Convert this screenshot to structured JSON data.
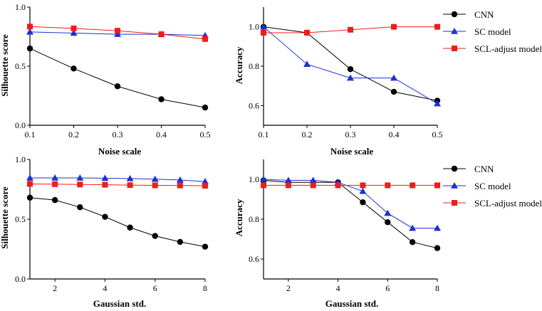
{
  "colors": {
    "CNN": "#000000",
    "SC model": "#1f2fd1",
    "SCL-adjust model": "#ee1c1c"
  },
  "legend": {
    "entries": [
      {
        "name": "CNN",
        "marker": "circle"
      },
      {
        "name": "SC model",
        "marker": "triangle"
      },
      {
        "name": "SCL-adjust model",
        "marker": "square"
      }
    ]
  },
  "chart_data": [
    {
      "type": "line",
      "id": "panel-a",
      "title": "",
      "xlabel": "Noise scale",
      "ylabel": "Silhouette score",
      "xlim": [
        0.1,
        0.5
      ],
      "ylim": [
        0.0,
        1.0
      ],
      "xticks": [
        0.1,
        0.2,
        0.3,
        0.4,
        0.5
      ],
      "xtick_labels": [
        "0.1",
        "0.2",
        "0.3",
        "0.4",
        "0.5"
      ],
      "yticks": [
        0.0,
        0.5,
        1.0
      ],
      "ytick_labels": [
        "0.0",
        "0.5",
        "1.0"
      ],
      "x": [
        0.1,
        0.2,
        0.3,
        0.4,
        0.5
      ],
      "series": [
        {
          "name": "CNN",
          "marker": "circle",
          "values": [
            0.65,
            0.48,
            0.33,
            0.22,
            0.15
          ]
        },
        {
          "name": "SC model",
          "marker": "triangle",
          "values": [
            0.79,
            0.78,
            0.77,
            0.77,
            0.76
          ]
        },
        {
          "name": "SCL-adjust model",
          "marker": "square",
          "values": [
            0.835,
            0.82,
            0.8,
            0.77,
            0.73
          ]
        }
      ]
    },
    {
      "type": "line",
      "id": "panel-b",
      "title": "",
      "xlabel": "Noise scale",
      "ylabel": "Accuracy",
      "xlim": [
        0.1,
        0.5
      ],
      "ylim": [
        0.5,
        1.1
      ],
      "xticks": [
        0.1,
        0.2,
        0.3,
        0.4,
        0.5
      ],
      "xtick_labels": [
        "0.1",
        "0.2",
        "0.3",
        "0.4",
        "0.5"
      ],
      "yticks": [
        0.6,
        0.8,
        1.0
      ],
      "ytick_labels": [
        "0.6",
        "0.8",
        "1.0"
      ],
      "x": [
        0.1,
        0.2,
        0.3,
        0.4,
        0.5
      ],
      "series": [
        {
          "name": "CNN",
          "marker": "circle",
          "values": [
            1.0,
            0.97,
            0.785,
            0.67,
            0.625
          ]
        },
        {
          "name": "SC model",
          "marker": "triangle",
          "values": [
            1.0,
            0.81,
            0.74,
            0.74,
            0.61
          ]
        },
        {
          "name": "SCL-adjust model",
          "marker": "square",
          "values": [
            0.97,
            0.97,
            0.985,
            1.0,
            1.0
          ]
        }
      ]
    },
    {
      "type": "line",
      "id": "panel-c",
      "title": "",
      "xlabel": "Gaussian std.",
      "ylabel": "Silhouette score",
      "xlim": [
        1,
        8
      ],
      "ylim": [
        0.0,
        1.0
      ],
      "xticks": [
        2,
        4,
        6,
        8
      ],
      "xtick_labels": [
        "2",
        "4",
        "6",
        "8"
      ],
      "yticks": [
        0.0,
        0.5,
        1.0
      ],
      "ytick_labels": [
        "0.0",
        "0.5",
        "1.0"
      ],
      "x": [
        1,
        2,
        3,
        4,
        5,
        6,
        7,
        8
      ],
      "series": [
        {
          "name": "CNN",
          "marker": "circle",
          "values": [
            0.68,
            0.66,
            0.6,
            0.52,
            0.43,
            0.36,
            0.31,
            0.27
          ]
        },
        {
          "name": "SC model",
          "marker": "triangle",
          "values": [
            0.845,
            0.845,
            0.845,
            0.843,
            0.84,
            0.835,
            0.828,
            0.815
          ]
        },
        {
          "name": "SCL-adjust model",
          "marker": "square",
          "values": [
            0.795,
            0.793,
            0.79,
            0.788,
            0.785,
            0.783,
            0.782,
            0.78
          ]
        }
      ]
    },
    {
      "type": "line",
      "id": "panel-d",
      "title": "",
      "xlabel": "Gaussian std.",
      "ylabel": "Accuracy",
      "xlim": [
        1,
        8
      ],
      "ylim": [
        0.5,
        1.1
      ],
      "xticks": [
        2,
        4,
        6,
        8
      ],
      "xtick_labels": [
        "2",
        "4",
        "6",
        "8"
      ],
      "yticks": [
        0.6,
        0.8,
        1.0
      ],
      "ytick_labels": [
        "0.6",
        "0.8",
        "1.0"
      ],
      "x": [
        1,
        2,
        3,
        4,
        5,
        6,
        7,
        8
      ],
      "series": [
        {
          "name": "CNN",
          "marker": "circle",
          "values": [
            0.995,
            0.985,
            0.985,
            0.985,
            0.885,
            0.785,
            0.685,
            0.655
          ]
        },
        {
          "name": "SC model",
          "marker": "triangle",
          "values": [
            1.0,
            0.995,
            0.995,
            0.985,
            0.94,
            0.83,
            0.755,
            0.755
          ]
        },
        {
          "name": "SCL-adjust model",
          "marker": "square",
          "values": [
            0.97,
            0.97,
            0.97,
            0.97,
            0.97,
            0.97,
            0.97,
            0.97
          ]
        }
      ]
    }
  ]
}
